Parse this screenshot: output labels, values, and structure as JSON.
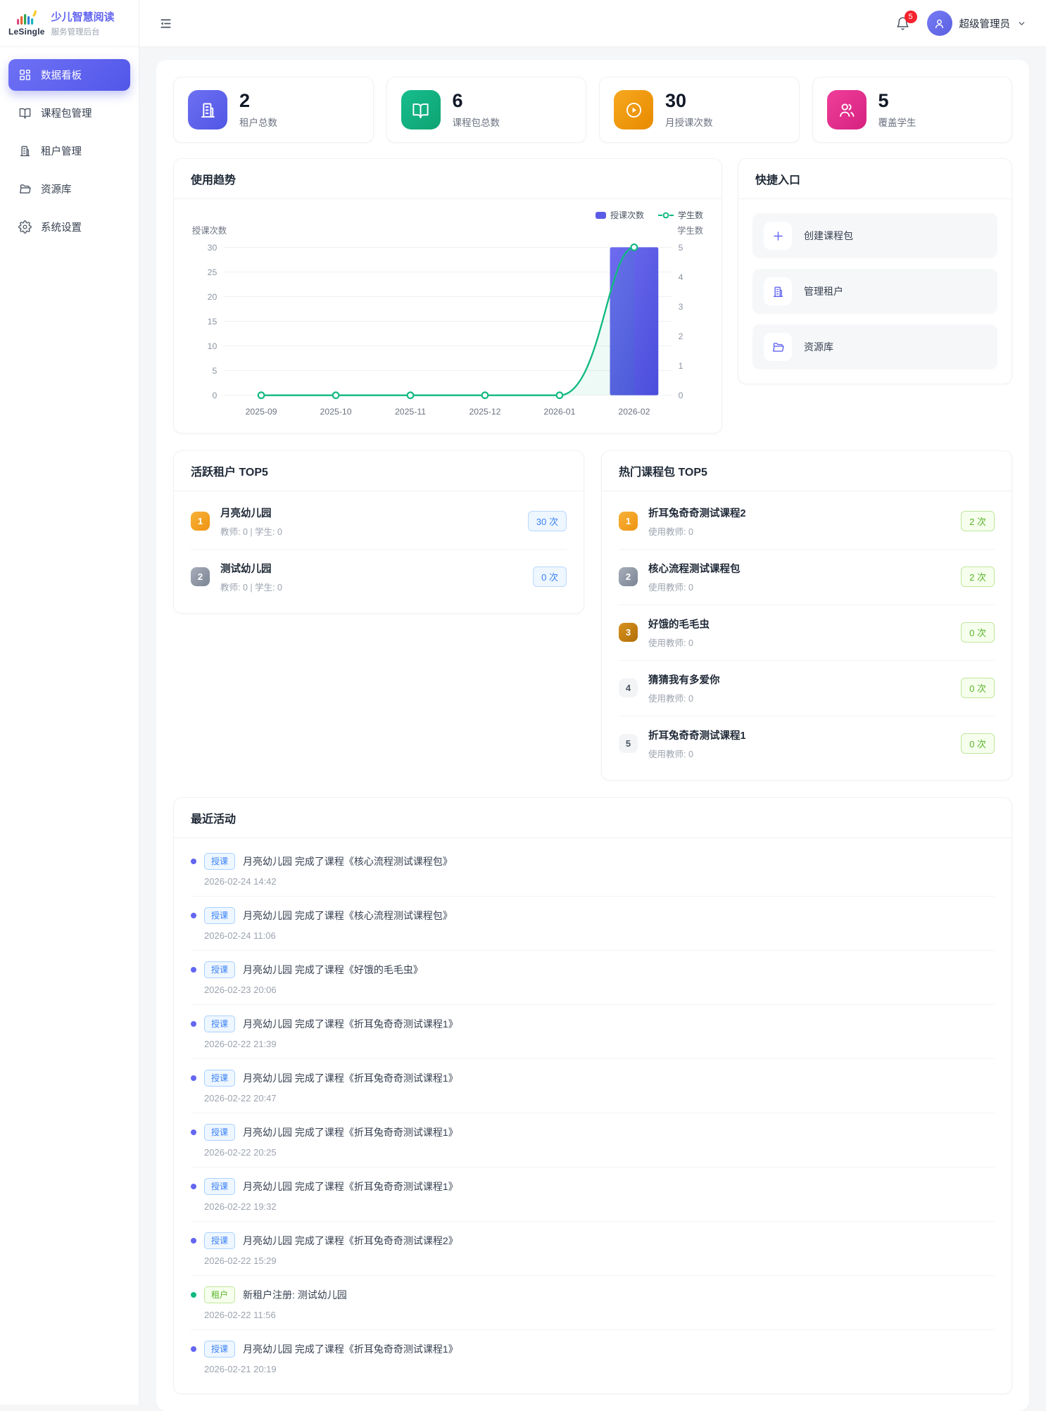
{
  "brand": {
    "name": "LeSingle",
    "title": "少儿智慧阅读",
    "subtitle": "服务管理后台"
  },
  "sidebar": {
    "items": [
      {
        "label": "数据看板",
        "icon": "dashboard-icon",
        "active": true
      },
      {
        "label": "课程包管理",
        "icon": "book-icon",
        "active": false
      },
      {
        "label": "租户管理",
        "icon": "building-icon",
        "active": false
      },
      {
        "label": "资源库",
        "icon": "folder-icon",
        "active": false
      },
      {
        "label": "系统设置",
        "icon": "gear-icon",
        "active": false
      }
    ]
  },
  "header": {
    "notification_count": "5",
    "user_name": "超级管理员"
  },
  "colors": {
    "primary": "#5b5ce6",
    "bar": "#5b5ce6",
    "line": "#10b981",
    "stat_purple": "#6366f1",
    "stat_green": "#10b981",
    "stat_orange": "#f59e0b",
    "stat_pink": "#ec4899",
    "notification_red": "#f5222d",
    "blue_badge": "#3b82f6",
    "green_badge": "#52c41a"
  },
  "stats": [
    {
      "value": "2",
      "label": "租户总数",
      "icon": "building-icon",
      "color": "#6366f1"
    },
    {
      "value": "6",
      "label": "课程包总数",
      "icon": "book-icon",
      "color": "#10b981"
    },
    {
      "value": "30",
      "label": "月授课次数",
      "icon": "play-icon",
      "color": "#f59e0b"
    },
    {
      "value": "5",
      "label": "覆盖学生",
      "icon": "users-icon",
      "color": "#ec4899"
    }
  ],
  "usage_trend": {
    "title": "使用趋势",
    "chart_data": {
      "type": "bar",
      "categories": [
        "2025-09",
        "2025-10",
        "2025-11",
        "2025-12",
        "2026-01",
        "2026-02"
      ],
      "series": [
        {
          "name": "授课次数",
          "type": "bar",
          "axis": "left",
          "color": "#5b5ce6",
          "values": [
            0,
            0,
            0,
            0,
            0,
            30
          ]
        },
        {
          "name": "学生数",
          "type": "line",
          "axis": "right",
          "color": "#10b981",
          "values": [
            0,
            0,
            0,
            0,
            0,
            5
          ]
        }
      ],
      "left_axis": {
        "label": "授课次数",
        "min": 0,
        "max": 30,
        "ticks": [
          0,
          5,
          10,
          15,
          20,
          25,
          30
        ]
      },
      "right_axis": {
        "label": "学生数",
        "min": 0,
        "max": 5,
        "ticks": [
          0,
          1,
          2,
          3,
          4,
          5
        ]
      },
      "grid": true,
      "legend_position": "top-right"
    }
  },
  "quick_entry": {
    "title": "快捷入口",
    "items": [
      {
        "label": "创建课程包",
        "icon": "plus-icon"
      },
      {
        "label": "管理租户",
        "icon": "building-icon"
      },
      {
        "label": "资源库",
        "icon": "folder-icon"
      }
    ]
  },
  "active_tenants": {
    "title": "活跃租户 TOP5",
    "badge_style": "blue",
    "items": [
      {
        "rank": 1,
        "name": "月亮幼儿园",
        "meta": "教师: 0 | 学生: 0",
        "count": "30 次"
      },
      {
        "rank": 2,
        "name": "测试幼儿园",
        "meta": "教师: 0 | 学生: 0",
        "count": "0 次"
      }
    ]
  },
  "hot_packages": {
    "title": "热门课程包 TOP5",
    "badge_style": "green",
    "items": [
      {
        "rank": 1,
        "name": "折耳兔奇奇测试课程2",
        "meta": "使用教师: 0",
        "count": "2 次"
      },
      {
        "rank": 2,
        "name": "核心流程测试课程包",
        "meta": "使用教师: 0",
        "count": "2 次"
      },
      {
        "rank": 3,
        "name": "好饿的毛毛虫",
        "meta": "使用教师: 0",
        "count": "0 次"
      },
      {
        "rank": 4,
        "name": "猜猜我有多爱你",
        "meta": "使用教师: 0",
        "count": "0 次"
      },
      {
        "rank": 5,
        "name": "折耳兔奇奇测试课程1",
        "meta": "使用教师: 0",
        "count": "0 次"
      }
    ]
  },
  "recent_activities": {
    "title": "最近活动",
    "items": [
      {
        "type": "lesson",
        "badge": "授课",
        "text": "月亮幼儿园 完成了课程《核心流程测试课程包》",
        "time": "2026-02-24 14:42"
      },
      {
        "type": "lesson",
        "badge": "授课",
        "text": "月亮幼儿园 完成了课程《核心流程测试课程包》",
        "time": "2026-02-24 11:06"
      },
      {
        "type": "lesson",
        "badge": "授课",
        "text": "月亮幼儿园 完成了课程《好饿的毛毛虫》",
        "time": "2026-02-23 20:06"
      },
      {
        "type": "lesson",
        "badge": "授课",
        "text": "月亮幼儿园 完成了课程《折耳兔奇奇测试课程1》",
        "time": "2026-02-22 21:39"
      },
      {
        "type": "lesson",
        "badge": "授课",
        "text": "月亮幼儿园 完成了课程《折耳兔奇奇测试课程1》",
        "time": "2026-02-22 20:47"
      },
      {
        "type": "lesson",
        "badge": "授课",
        "text": "月亮幼儿园 完成了课程《折耳兔奇奇测试课程1》",
        "time": "2026-02-22 20:25"
      },
      {
        "type": "lesson",
        "badge": "授课",
        "text": "月亮幼儿园 完成了课程《折耳兔奇奇测试课程1》",
        "time": "2026-02-22 19:32"
      },
      {
        "type": "lesson",
        "badge": "授课",
        "text": "月亮幼儿园 完成了课程《折耳兔奇奇测试课程2》",
        "time": "2026-02-22 15:29"
      },
      {
        "type": "tenant",
        "badge": "租户",
        "text": "新租户注册: 测试幼儿园",
        "time": "2026-02-22 11:56"
      },
      {
        "type": "lesson",
        "badge": "授课",
        "text": "月亮幼儿园 完成了课程《折耳兔奇奇测试课程1》",
        "time": "2026-02-21 20:19"
      }
    ]
  }
}
